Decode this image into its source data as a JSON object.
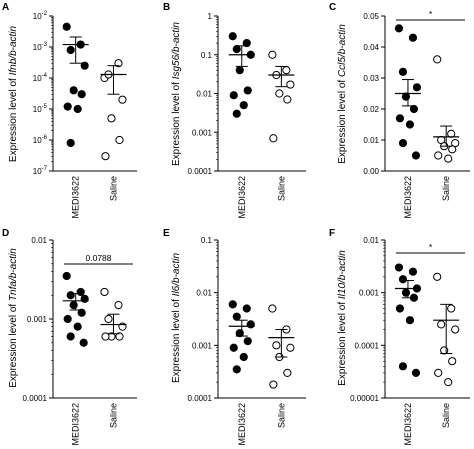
{
  "figure": {
    "panels": [
      "A",
      "B",
      "C",
      "D",
      "E",
      "F"
    ]
  },
  "chart_data": [
    {
      "panel": "A",
      "type": "scatter",
      "scale": "log",
      "ylabel_prefix": "Expression level of ",
      "ylabel_italic": "Ifnb/b-actin",
      "categories": [
        "MEDI3622",
        "Saline"
      ],
      "ylim": [
        1e-07,
        0.01
      ],
      "y_ticks": [
        {
          "value": 0.01,
          "base": "10",
          "exp": "-2"
        },
        {
          "value": 0.001,
          "base": "10",
          "exp": "-3"
        },
        {
          "value": 0.0001,
          "base": "10",
          "exp": "-4"
        },
        {
          "value": 1e-05,
          "base": "10",
          "exp": "-5"
        },
        {
          "value": 1e-06,
          "base": "10",
          "exp": "-6"
        },
        {
          "value": 1e-07,
          "base": "10",
          "exp": "-7"
        }
      ],
      "series": [
        {
          "marker": "filled",
          "values": [
            0.0045,
            0.0012,
            0.0008,
            0.00025,
            4e-05,
            3e-05,
            1.2e-05,
            1e-05,
            8e-07
          ],
          "mean": 0.0012,
          "sem": [
            0.0003,
            0.0021
          ]
        },
        {
          "marker": "open",
          "values": [
            0.0001,
            0.0003,
            0.00013,
            2e-05,
            5e-06,
            1e-06,
            3e-07
          ],
          "mean": 0.00013,
          "sem": [
            3e-05,
            0.00025
          ]
        }
      ],
      "annotation": null
    },
    {
      "panel": "B",
      "type": "scatter",
      "scale": "log",
      "ylabel_prefix": "Expression level of ",
      "ylabel_italic": "Isg56/b-actin",
      "categories": [
        "MEDI3622",
        "Saline"
      ],
      "ylim": [
        0.0001,
        1
      ],
      "y_ticks": [
        {
          "value": 1,
          "text": "1"
        },
        {
          "value": 0.1,
          "text": "0.1"
        },
        {
          "value": 0.01,
          "text": "0.01"
        },
        {
          "value": 0.001,
          "text": "0.001"
        },
        {
          "value": 0.0001,
          "text": "0.0001"
        }
      ],
      "series": [
        {
          "marker": "filled",
          "values": [
            0.3,
            0.2,
            0.14,
            0.1,
            0.04,
            0.012,
            0.009,
            0.005,
            0.003
          ],
          "mean": 0.1,
          "sem": [
            0.05,
            0.17
          ]
        },
        {
          "marker": "open",
          "values": [
            0.1,
            0.04,
            0.03,
            0.017,
            0.01,
            0.007,
            0.0007
          ],
          "mean": 0.03,
          "sem": [
            0.015,
            0.05
          ]
        }
      ],
      "annotation": null
    },
    {
      "panel": "C",
      "type": "scatter",
      "scale": "linear",
      "ylabel_prefix": "Expression level of ",
      "ylabel_italic": "Ccl5/b-actin",
      "categories": [
        "MEDI3622",
        "Saline"
      ],
      "ylim": [
        0,
        0.05
      ],
      "y_ticks": [
        {
          "value": 0,
          "text": "0.00"
        },
        {
          "value": 0.01,
          "text": "0.01"
        },
        {
          "value": 0.02,
          "text": "0.02"
        },
        {
          "value": 0.03,
          "text": "0.03"
        },
        {
          "value": 0.04,
          "text": "0.04"
        },
        {
          "value": 0.05,
          "text": "0.05"
        }
      ],
      "series": [
        {
          "marker": "filled",
          "values": [
            0.046,
            0.043,
            0.032,
            0.027,
            0.024,
            0.02,
            0.017,
            0.015,
            0.009,
            0.005
          ],
          "mean": 0.025,
          "sem": [
            0.021,
            0.0295
          ]
        },
        {
          "marker": "open",
          "values": [
            0.036,
            0.012,
            0.01,
            0.009,
            0.008,
            0.007,
            0.005,
            0.004
          ],
          "mean": 0.011,
          "sem": [
            0.008,
            0.0145
          ]
        }
      ],
      "annotation": {
        "text": "*"
      }
    },
    {
      "panel": "D",
      "type": "scatter",
      "scale": "log",
      "ylabel_prefix": "Expression level of ",
      "ylabel_italic": "Tnfa/b-actin",
      "categories": [
        "MEDI3622",
        "Saline"
      ],
      "ylim": [
        0.0001,
        0.01
      ],
      "y_ticks": [
        {
          "value": 0.01,
          "text": "0.01"
        },
        {
          "value": 0.001,
          "text": "0.001"
        },
        {
          "value": 0.0001,
          "text": "0.0001"
        }
      ],
      "series": [
        {
          "marker": "filled",
          "values": [
            0.0035,
            0.0022,
            0.002,
            0.0018,
            0.0015,
            0.0012,
            0.001,
            0.0008,
            0.0006,
            0.0005
          ],
          "mean": 0.0017,
          "sem": [
            0.0013,
            0.0021
          ]
        },
        {
          "marker": "open",
          "values": [
            0.0022,
            0.0015,
            0.001,
            0.0008,
            0.0006,
            0.0006,
            0.0006
          ],
          "mean": 0.00085,
          "sem": [
            0.00065,
            0.00115
          ]
        }
      ],
      "annotation": {
        "text": "0.0788"
      }
    },
    {
      "panel": "E",
      "type": "scatter",
      "scale": "log",
      "ylabel_prefix": "Expression level of ",
      "ylabel_italic": "Il6/b-actin",
      "categories": [
        "MEDI3622",
        "Saline"
      ],
      "ylim": [
        0.0001,
        0.1
      ],
      "y_ticks": [
        {
          "value": 0.1,
          "text": "0.1"
        },
        {
          "value": 0.01,
          "text": "0.01"
        },
        {
          "value": 0.001,
          "text": "0.001"
        },
        {
          "value": 0.0001,
          "text": "0.0001"
        }
      ],
      "series": [
        {
          "marker": "filled",
          "values": [
            0.006,
            0.005,
            0.0035,
            0.0025,
            0.0017,
            0.0012,
            0.0009,
            0.0006,
            0.00035
          ],
          "mean": 0.0023,
          "sem": [
            0.0015,
            0.003
          ]
        },
        {
          "marker": "open",
          "values": [
            0.005,
            0.002,
            0.001,
            0.0009,
            0.0006,
            0.0003,
            0.00018
          ],
          "mean": 0.0014,
          "sem": [
            0.0006,
            0.002
          ]
        }
      ],
      "annotation": null
    },
    {
      "panel": "F",
      "type": "scatter",
      "scale": "log",
      "ylabel_prefix": "Expression level of ",
      "ylabel_italic": "Il10/b-actin",
      "categories": [
        "MEDI3622",
        "Saline"
      ],
      "ylim": [
        1e-05,
        0.01
      ],
      "y_ticks": [
        {
          "value": 0.01,
          "text": "0.01"
        },
        {
          "value": 0.001,
          "text": "0.001"
        },
        {
          "value": 0.0001,
          "text": "0.0001"
        },
        {
          "value": 1e-05,
          "text": "0.00001"
        }
      ],
      "series": [
        {
          "marker": "filled",
          "values": [
            0.003,
            0.0025,
            0.0018,
            0.0012,
            0.001,
            0.0008,
            0.0005,
            0.0003,
            4e-05,
            3e-05
          ],
          "mean": 0.0012,
          "sem": [
            0.0008,
            0.0017
          ]
        },
        {
          "marker": "open",
          "values": [
            0.002,
            0.0005,
            0.00025,
            0.0002,
            8e-05,
            5e-05,
            3e-05,
            2e-05
          ],
          "mean": 0.0003,
          "sem": [
            7e-05,
            0.0006
          ]
        }
      ],
      "annotation": {
        "text": "*"
      }
    }
  ]
}
